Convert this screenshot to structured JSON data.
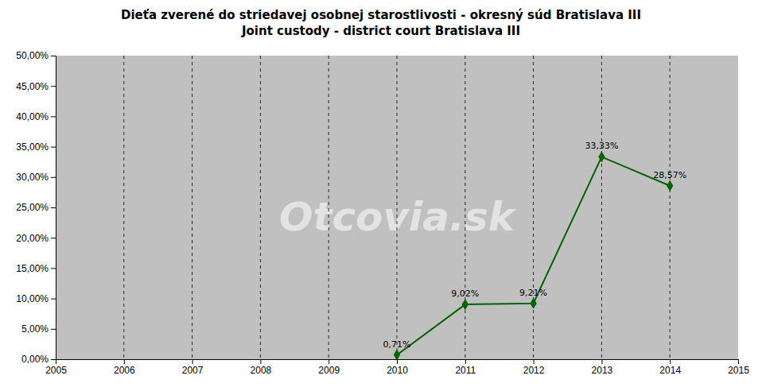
{
  "chart_data": {
    "type": "line",
    "title": "Dieťa zverené do striedavej osobnej starostlivosti - okresný súd Bratislava III",
    "subtitle": "Joint custody - district court Bratislava III",
    "x": [
      2010,
      2011,
      2012,
      2013,
      2014
    ],
    "values": [
      0.0071,
      0.0902,
      0.0921,
      0.3333,
      0.2857
    ],
    "value_labels": [
      "0,71%",
      "9,02%",
      "9,21%",
      "33,33%",
      "28,57%"
    ],
    "data_labels": true,
    "color": "#006400",
    "marker": "diamond",
    "line_style": "solid",
    "xlim": [
      2005,
      2015
    ],
    "xticks": [
      2005,
      2006,
      2007,
      2008,
      2009,
      2010,
      2011,
      2012,
      2013,
      2014,
      2015
    ],
    "ylim": [
      0.0,
      0.5
    ],
    "yticks": [
      {
        "value": 0.0,
        "label": "0,00%"
      },
      {
        "value": 0.05,
        "label": "5,00%"
      },
      {
        "value": 0.1,
        "label": "10,00%"
      },
      {
        "value": 0.15,
        "label": "15,00%"
      },
      {
        "value": 0.2,
        "label": "20,00%"
      },
      {
        "value": 0.25,
        "label": "25,00%"
      },
      {
        "value": 0.3,
        "label": "30,00%"
      },
      {
        "value": 0.35,
        "label": "35,00%"
      },
      {
        "value": 0.4,
        "label": "40,00%"
      },
      {
        "value": 0.45,
        "label": "45,00%"
      },
      {
        "value": 0.5,
        "label": "50,00%"
      }
    ],
    "vlines": [
      2006,
      2007,
      2008,
      2009,
      2010,
      2011,
      2012,
      2013,
      2014
    ],
    "watermark": "Otcovia.sk",
    "grid": false
  }
}
